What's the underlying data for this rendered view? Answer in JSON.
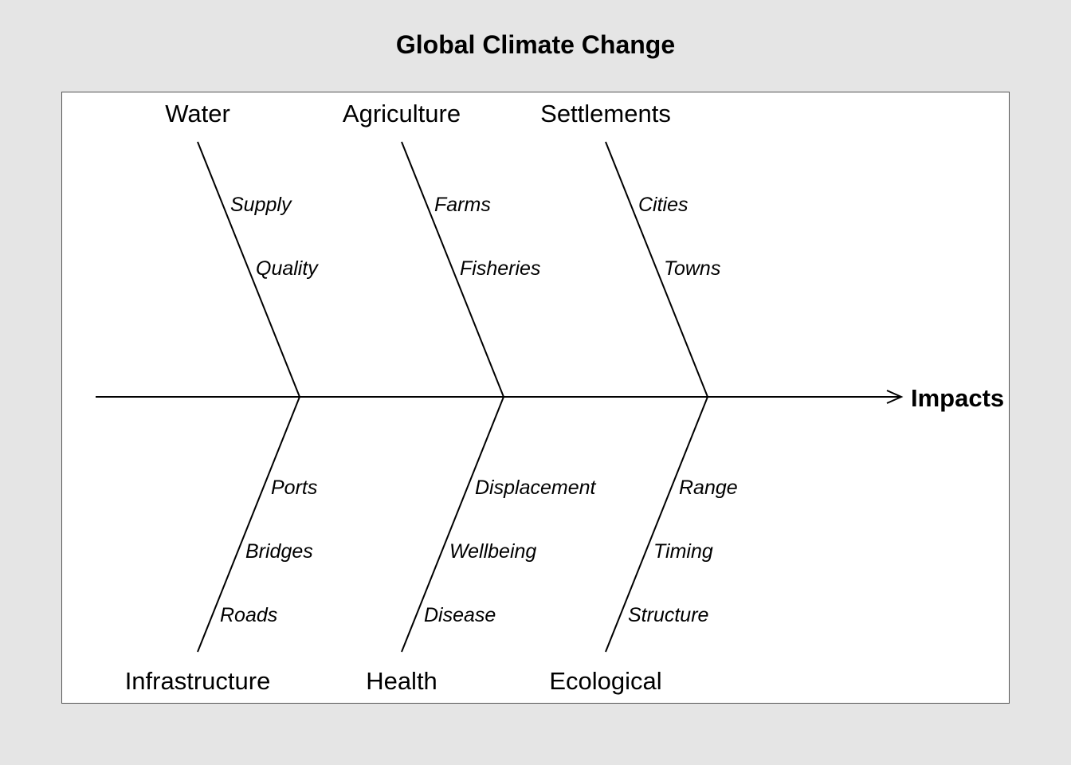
{
  "title": "Global Climate Change",
  "effect": "Impacts",
  "top_categories": [
    {
      "name": "Water",
      "causes": [
        "Supply",
        "Quality"
      ]
    },
    {
      "name": "Agriculture",
      "causes": [
        "Farms",
        "Fisheries"
      ]
    },
    {
      "name": "Settlements",
      "causes": [
        "Cities",
        "Towns"
      ]
    }
  ],
  "bottom_categories": [
    {
      "name": "Infrastructure",
      "causes": [
        "Ports",
        "Bridges",
        "Roads"
      ]
    },
    {
      "name": "Health",
      "causes": [
        "Displacement",
        "Wellbeing",
        "Disease"
      ]
    },
    {
      "name": "Ecological",
      "causes": [
        "Range",
        "Timing",
        "Structure"
      ]
    }
  ]
}
